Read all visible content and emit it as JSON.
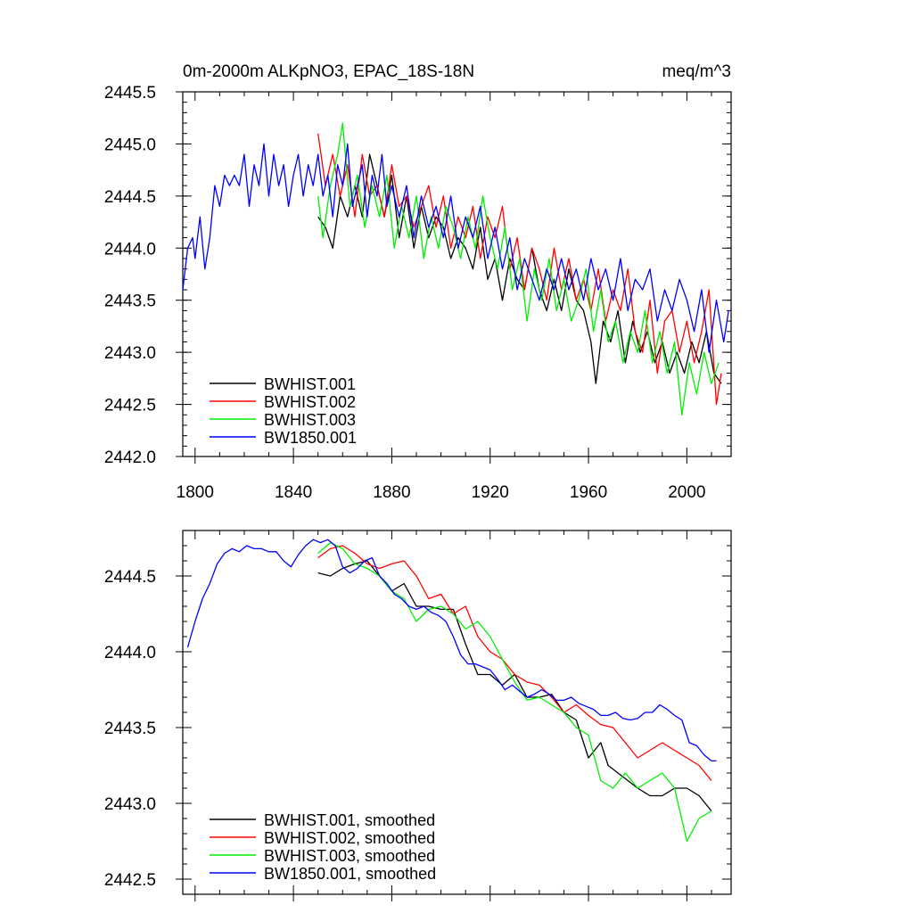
{
  "chart_data": [
    {
      "type": "line",
      "title": "0m-2000m ALKpNO3, EPAC_18S-18N",
      "units": "meq/m^3",
      "xlim": [
        1795,
        2018
      ],
      "ylim": [
        2442.0,
        2445.5
      ],
      "x_ticks": [
        1800,
        1840,
        1880,
        1920,
        1960,
        2000
      ],
      "x_tick_labels": [
        "1800",
        "1840",
        "1880",
        "1920",
        "1960",
        "2000"
      ],
      "y_ticks": [
        2442.0,
        2442.5,
        2443.0,
        2443.5,
        2444.0,
        2444.5,
        2445.0,
        2445.5
      ],
      "y_tick_labels": [
        "2442.0",
        "2442.5",
        "2443.0",
        "2443.5",
        "2444.0",
        "2444.5",
        "2445.0",
        "2445.5"
      ],
      "legend_position": "bottom-left",
      "series": [
        {
          "name": "BWHIST.001",
          "color": "#000000",
          "x": [
            1850,
            1853,
            1856,
            1859,
            1862,
            1865,
            1868,
            1871,
            1874,
            1877,
            1880,
            1883,
            1886,
            1889,
            1892,
            1895,
            1898,
            1901,
            1904,
            1907,
            1910,
            1913,
            1916,
            1919,
            1922,
            1925,
            1928,
            1931,
            1934,
            1937,
            1940,
            1943,
            1946,
            1949,
            1952,
            1955,
            1958,
            1961,
            1963,
            1966,
            1969,
            1972,
            1975,
            1978,
            1981,
            1984,
            1987,
            1990,
            1993,
            1996,
            1999,
            2002,
            2005,
            2008,
            2011,
            2014
          ],
          "y": [
            2444.3,
            2444.2,
            2444.0,
            2444.5,
            2444.3,
            2444.6,
            2444.3,
            2444.9,
            2444.6,
            2444.3,
            2444.7,
            2444.1,
            2444.5,
            2444.0,
            2444.4,
            2444.1,
            2444.3,
            2444.2,
            2443.9,
            2444.1,
            2444.0,
            2443.8,
            2444.2,
            2443.7,
            2443.9,
            2443.5,
            2443.9,
            2443.7,
            2443.6,
            2444.0,
            2443.6,
            2443.4,
            2443.7,
            2443.4,
            2443.8,
            2443.5,
            2443.4,
            2443.1,
            2442.7,
            2443.3,
            2443.1,
            2443.4,
            2442.9,
            2443.3,
            2443.0,
            2443.2,
            2442.9,
            2443.1,
            2442.8,
            2443.0,
            2442.8,
            2443.1,
            2442.9,
            2443.2,
            2442.8,
            2442.7
          ]
        },
        {
          "name": "BWHIST.002",
          "color": "#ff0000",
          "x": [
            1850,
            1853,
            1856,
            1859,
            1862,
            1865,
            1868,
            1871,
            1874,
            1877,
            1880,
            1883,
            1886,
            1889,
            1892,
            1895,
            1898,
            1901,
            1904,
            1907,
            1910,
            1913,
            1916,
            1919,
            1922,
            1925,
            1928,
            1931,
            1934,
            1937,
            1940,
            1943,
            1946,
            1949,
            1952,
            1955,
            1958,
            1961,
            1964,
            1967,
            1970,
            1973,
            1976,
            1979,
            1982,
            1985,
            1988,
            1991,
            1994,
            1997,
            2000,
            2003,
            2006,
            2009,
            2012,
            2014
          ],
          "y": [
            2445.1,
            2444.6,
            2444.9,
            2444.5,
            2444.8,
            2444.3,
            2444.9,
            2444.5,
            2444.6,
            2444.3,
            2444.8,
            2444.4,
            2444.5,
            2444.2,
            2444.4,
            2444.6,
            2444.2,
            2444.5,
            2444.0,
            2444.3,
            2444.1,
            2444.4,
            2443.9,
            2444.3,
            2444.1,
            2444.4,
            2443.8,
            2444.1,
            2443.6,
            2444.0,
            2443.8,
            2443.5,
            2444.0,
            2443.6,
            2443.9,
            2443.5,
            2443.7,
            2443.4,
            2443.8,
            2443.3,
            2443.6,
            2443.4,
            2443.8,
            2443.2,
            2443.0,
            2443.5,
            2442.8,
            2443.3,
            2443.4,
            2443.0,
            2443.3,
            2442.9,
            2443.2,
            2443.6,
            2442.5,
            2442.8
          ]
        },
        {
          "name": "BWHIST.003",
          "color": "#00ee00",
          "x": [
            1850,
            1852,
            1855,
            1858,
            1860,
            1863,
            1866,
            1869,
            1872,
            1875,
            1878,
            1881,
            1884,
            1887,
            1890,
            1893,
            1896,
            1899,
            1902,
            1905,
            1908,
            1911,
            1914,
            1917,
            1920,
            1923,
            1926,
            1929,
            1932,
            1935,
            1938,
            1941,
            1944,
            1947,
            1950,
            1953,
            1956,
            1959,
            1962,
            1965,
            1968,
            1971,
            1974,
            1977,
            1980,
            1983,
            1986,
            1989,
            1992,
            1995,
            1998,
            2001,
            2004,
            2007,
            2010,
            2013
          ],
          "y": [
            2444.5,
            2444.1,
            2444.6,
            2444.9,
            2445.2,
            2444.4,
            2444.7,
            2444.2,
            2444.6,
            2444.3,
            2444.7,
            2444.0,
            2444.4,
            2444.1,
            2444.5,
            2443.9,
            2444.3,
            2444.0,
            2444.4,
            2444.2,
            2443.9,
            2444.3,
            2444.0,
            2444.5,
            2444.1,
            2443.8,
            2444.2,
            2443.6,
            2443.9,
            2443.3,
            2443.8,
            2443.5,
            2443.9,
            2443.4,
            2443.7,
            2443.3,
            2443.5,
            2443.8,
            2443.2,
            2443.6,
            2443.1,
            2443.3,
            2442.9,
            2443.2,
            2443.0,
            2443.4,
            2442.9,
            2443.2,
            2442.8,
            2443.1,
            2442.4,
            2442.9,
            2442.6,
            2443.0,
            2442.7,
            2442.9
          ]
        },
        {
          "name": "BW1850.001",
          "color": "#0000ff",
          "x": [
            1795,
            1797,
            1799,
            1800,
            1802,
            1804,
            1806,
            1808,
            1810,
            1812,
            1814,
            1816,
            1818,
            1820,
            1822,
            1824,
            1826,
            1828,
            1830,
            1832,
            1834,
            1836,
            1838,
            1840,
            1842,
            1844,
            1846,
            1848,
            1850,
            1852,
            1854,
            1856,
            1858,
            1860,
            1862,
            1864,
            1866,
            1868,
            1870,
            1872,
            1874,
            1876,
            1878,
            1880,
            1883,
            1886,
            1889,
            1892,
            1895,
            1898,
            1901,
            1904,
            1907,
            1910,
            1913,
            1916,
            1919,
            1922,
            1925,
            1928,
            1931,
            1934,
            1937,
            1940,
            1943,
            1946,
            1949,
            1952,
            1955,
            1958,
            1961,
            1964,
            1967,
            1970,
            1973,
            1976,
            1979,
            1982,
            1985,
            1988,
            1991,
            1994,
            1997,
            2000,
            2003,
            2006,
            2009,
            2012,
            2015,
            2017
          ],
          "y": [
            2443.6,
            2444.0,
            2444.1,
            2443.9,
            2444.3,
            2443.8,
            2444.1,
            2444.6,
            2444.4,
            2444.7,
            2444.6,
            2444.7,
            2444.6,
            2444.9,
            2444.4,
            2444.8,
            2444.6,
            2445.0,
            2444.5,
            2444.9,
            2444.6,
            2444.8,
            2444.4,
            2444.7,
            2444.9,
            2444.5,
            2444.8,
            2444.6,
            2444.9,
            2444.5,
            2444.7,
            2444.3,
            2444.8,
            2444.6,
            2445.0,
            2444.4,
            2444.6,
            2444.8,
            2444.3,
            2444.7,
            2444.5,
            2444.9,
            2444.4,
            2444.6,
            2444.3,
            2444.6,
            2444.1,
            2444.5,
            2444.2,
            2444.4,
            2444.1,
            2444.5,
            2444.0,
            2444.3,
            2444.1,
            2444.4,
            2443.9,
            2444.2,
            2443.8,
            2444.1,
            2443.6,
            2443.9,
            2443.7,
            2443.5,
            2443.8,
            2443.6,
            2443.9,
            2443.6,
            2443.8,
            2443.5,
            2443.9,
            2443.6,
            2443.8,
            2443.5,
            2443.9,
            2443.4,
            2443.7,
            2443.6,
            2443.8,
            2443.3,
            2443.6,
            2443.4,
            2443.7,
            2443.5,
            2443.2,
            2443.6,
            2443.0,
            2443.5,
            2443.1,
            2443.4
          ]
        }
      ]
    },
    {
      "type": "line",
      "xlim": [
        1795,
        2018
      ],
      "ylim": [
        2442.4,
        2444.8
      ],
      "x_ticks": [
        1800,
        1840,
        1880,
        1920,
        1960,
        2000
      ],
      "y_ticks": [
        2442.5,
        2443.0,
        2443.5,
        2444.0,
        2444.5
      ],
      "y_tick_labels": [
        "2442.5",
        "2443.0",
        "2443.5",
        "2444.0",
        "2444.5"
      ],
      "legend_position": "bottom-left",
      "series": [
        {
          "name": "BWHIST.001, smoothed",
          "color": "#000000",
          "x": [
            1850,
            1855,
            1860,
            1865,
            1870,
            1875,
            1880,
            1885,
            1890,
            1895,
            1900,
            1905,
            1910,
            1915,
            1920,
            1925,
            1930,
            1935,
            1940,
            1945,
            1950,
            1955,
            1960,
            1965,
            1968,
            1972,
            1976,
            1980,
            1985,
            1990,
            1995,
            2000,
            2005,
            2010
          ],
          "y": [
            2444.52,
            2444.5,
            2444.55,
            2444.58,
            2444.6,
            2444.5,
            2444.4,
            2444.45,
            2444.3,
            2444.3,
            2444.28,
            2444.28,
            2444.05,
            2443.85,
            2443.85,
            2443.78,
            2443.85,
            2443.7,
            2443.7,
            2443.72,
            2443.6,
            2443.55,
            2443.3,
            2443.4,
            2443.25,
            2443.2,
            2443.15,
            2443.1,
            2443.05,
            2443.05,
            2443.1,
            2443.1,
            2443.05,
            2442.95
          ]
        },
        {
          "name": "BWHIST.002, smoothed",
          "color": "#ff0000",
          "x": [
            1850,
            1855,
            1860,
            1865,
            1870,
            1875,
            1880,
            1885,
            1890,
            1895,
            1900,
            1905,
            1910,
            1915,
            1920,
            1925,
            1930,
            1935,
            1940,
            1945,
            1950,
            1955,
            1960,
            1965,
            1970,
            1975,
            1980,
            1985,
            1990,
            1995,
            2000,
            2005,
            2010
          ],
          "y": [
            2444.62,
            2444.68,
            2444.7,
            2444.65,
            2444.58,
            2444.55,
            2444.58,
            2444.6,
            2444.5,
            2444.35,
            2444.38,
            2444.25,
            2444.3,
            2444.1,
            2444.0,
            2443.95,
            2443.85,
            2443.8,
            2443.78,
            2443.7,
            2443.6,
            2443.65,
            2443.58,
            2443.52,
            2443.5,
            2443.4,
            2443.3,
            2443.35,
            2443.4,
            2443.35,
            2443.3,
            2443.25,
            2443.15
          ]
        },
        {
          "name": "BWHIST.003, smoothed",
          "color": "#00ee00",
          "x": [
            1850,
            1855,
            1860,
            1865,
            1870,
            1875,
            1880,
            1885,
            1890,
            1895,
            1900,
            1905,
            1910,
            1915,
            1920,
            1925,
            1930,
            1935,
            1940,
            1945,
            1950,
            1955,
            1960,
            1965,
            1970,
            1975,
            1980,
            1985,
            1990,
            1995,
            2000,
            2005,
            2010
          ],
          "y": [
            2444.65,
            2444.72,
            2444.68,
            2444.58,
            2444.55,
            2444.5,
            2444.4,
            2444.35,
            2444.2,
            2444.28,
            2444.3,
            2444.25,
            2444.15,
            2444.2,
            2444.1,
            2443.95,
            2443.8,
            2443.68,
            2443.7,
            2443.65,
            2443.6,
            2443.5,
            2443.45,
            2443.15,
            2443.1,
            2443.2,
            2443.1,
            2443.15,
            2443.2,
            2443.1,
            2442.75,
            2442.9,
            2442.95
          ]
        },
        {
          "name": "BW1850.001, smoothed",
          "color": "#0000ff",
          "x": [
            1797,
            1800,
            1803,
            1806,
            1809,
            1812,
            1815,
            1818,
            1821,
            1824,
            1827,
            1830,
            1833,
            1836,
            1839,
            1842,
            1845,
            1848,
            1851,
            1854,
            1857,
            1860,
            1863,
            1866,
            1869,
            1872,
            1875,
            1878,
            1881,
            1884,
            1887,
            1890,
            1893,
            1896,
            1899,
            1902,
            1905,
            1908,
            1911,
            1914,
            1917,
            1920,
            1923,
            1926,
            1929,
            1932,
            1935,
            1938,
            1941,
            1944,
            1947,
            1950,
            1953,
            1956,
            1959,
            1962,
            1965,
            1968,
            1971,
            1974,
            1977,
            1980,
            1983,
            1986,
            1989,
            1992,
            1995,
            1998,
            2001,
            2004,
            2007,
            2010,
            2012
          ],
          "y": [
            2444.03,
            2444.2,
            2444.35,
            2444.45,
            2444.58,
            2444.65,
            2444.68,
            2444.66,
            2444.7,
            2444.68,
            2444.68,
            2444.66,
            2444.66,
            2444.6,
            2444.56,
            2444.64,
            2444.7,
            2444.74,
            2444.72,
            2444.74,
            2444.7,
            2444.56,
            2444.52,
            2444.55,
            2444.6,
            2444.62,
            2444.5,
            2444.45,
            2444.38,
            2444.35,
            2444.3,
            2444.28,
            2444.3,
            2444.26,
            2444.24,
            2444.2,
            2444.1,
            2443.98,
            2443.92,
            2443.92,
            2443.9,
            2443.88,
            2443.82,
            2443.75,
            2443.78,
            2443.74,
            2443.7,
            2443.72,
            2443.75,
            2443.72,
            2443.68,
            2443.68,
            2443.7,
            2443.66,
            2443.64,
            2443.62,
            2443.58,
            2443.58,
            2443.6,
            2443.56,
            2443.55,
            2443.56,
            2443.6,
            2443.6,
            2443.65,
            2443.62,
            2443.58,
            2443.55,
            2443.4,
            2443.38,
            2443.32,
            2443.28,
            2443.28
          ]
        }
      ]
    }
  ]
}
